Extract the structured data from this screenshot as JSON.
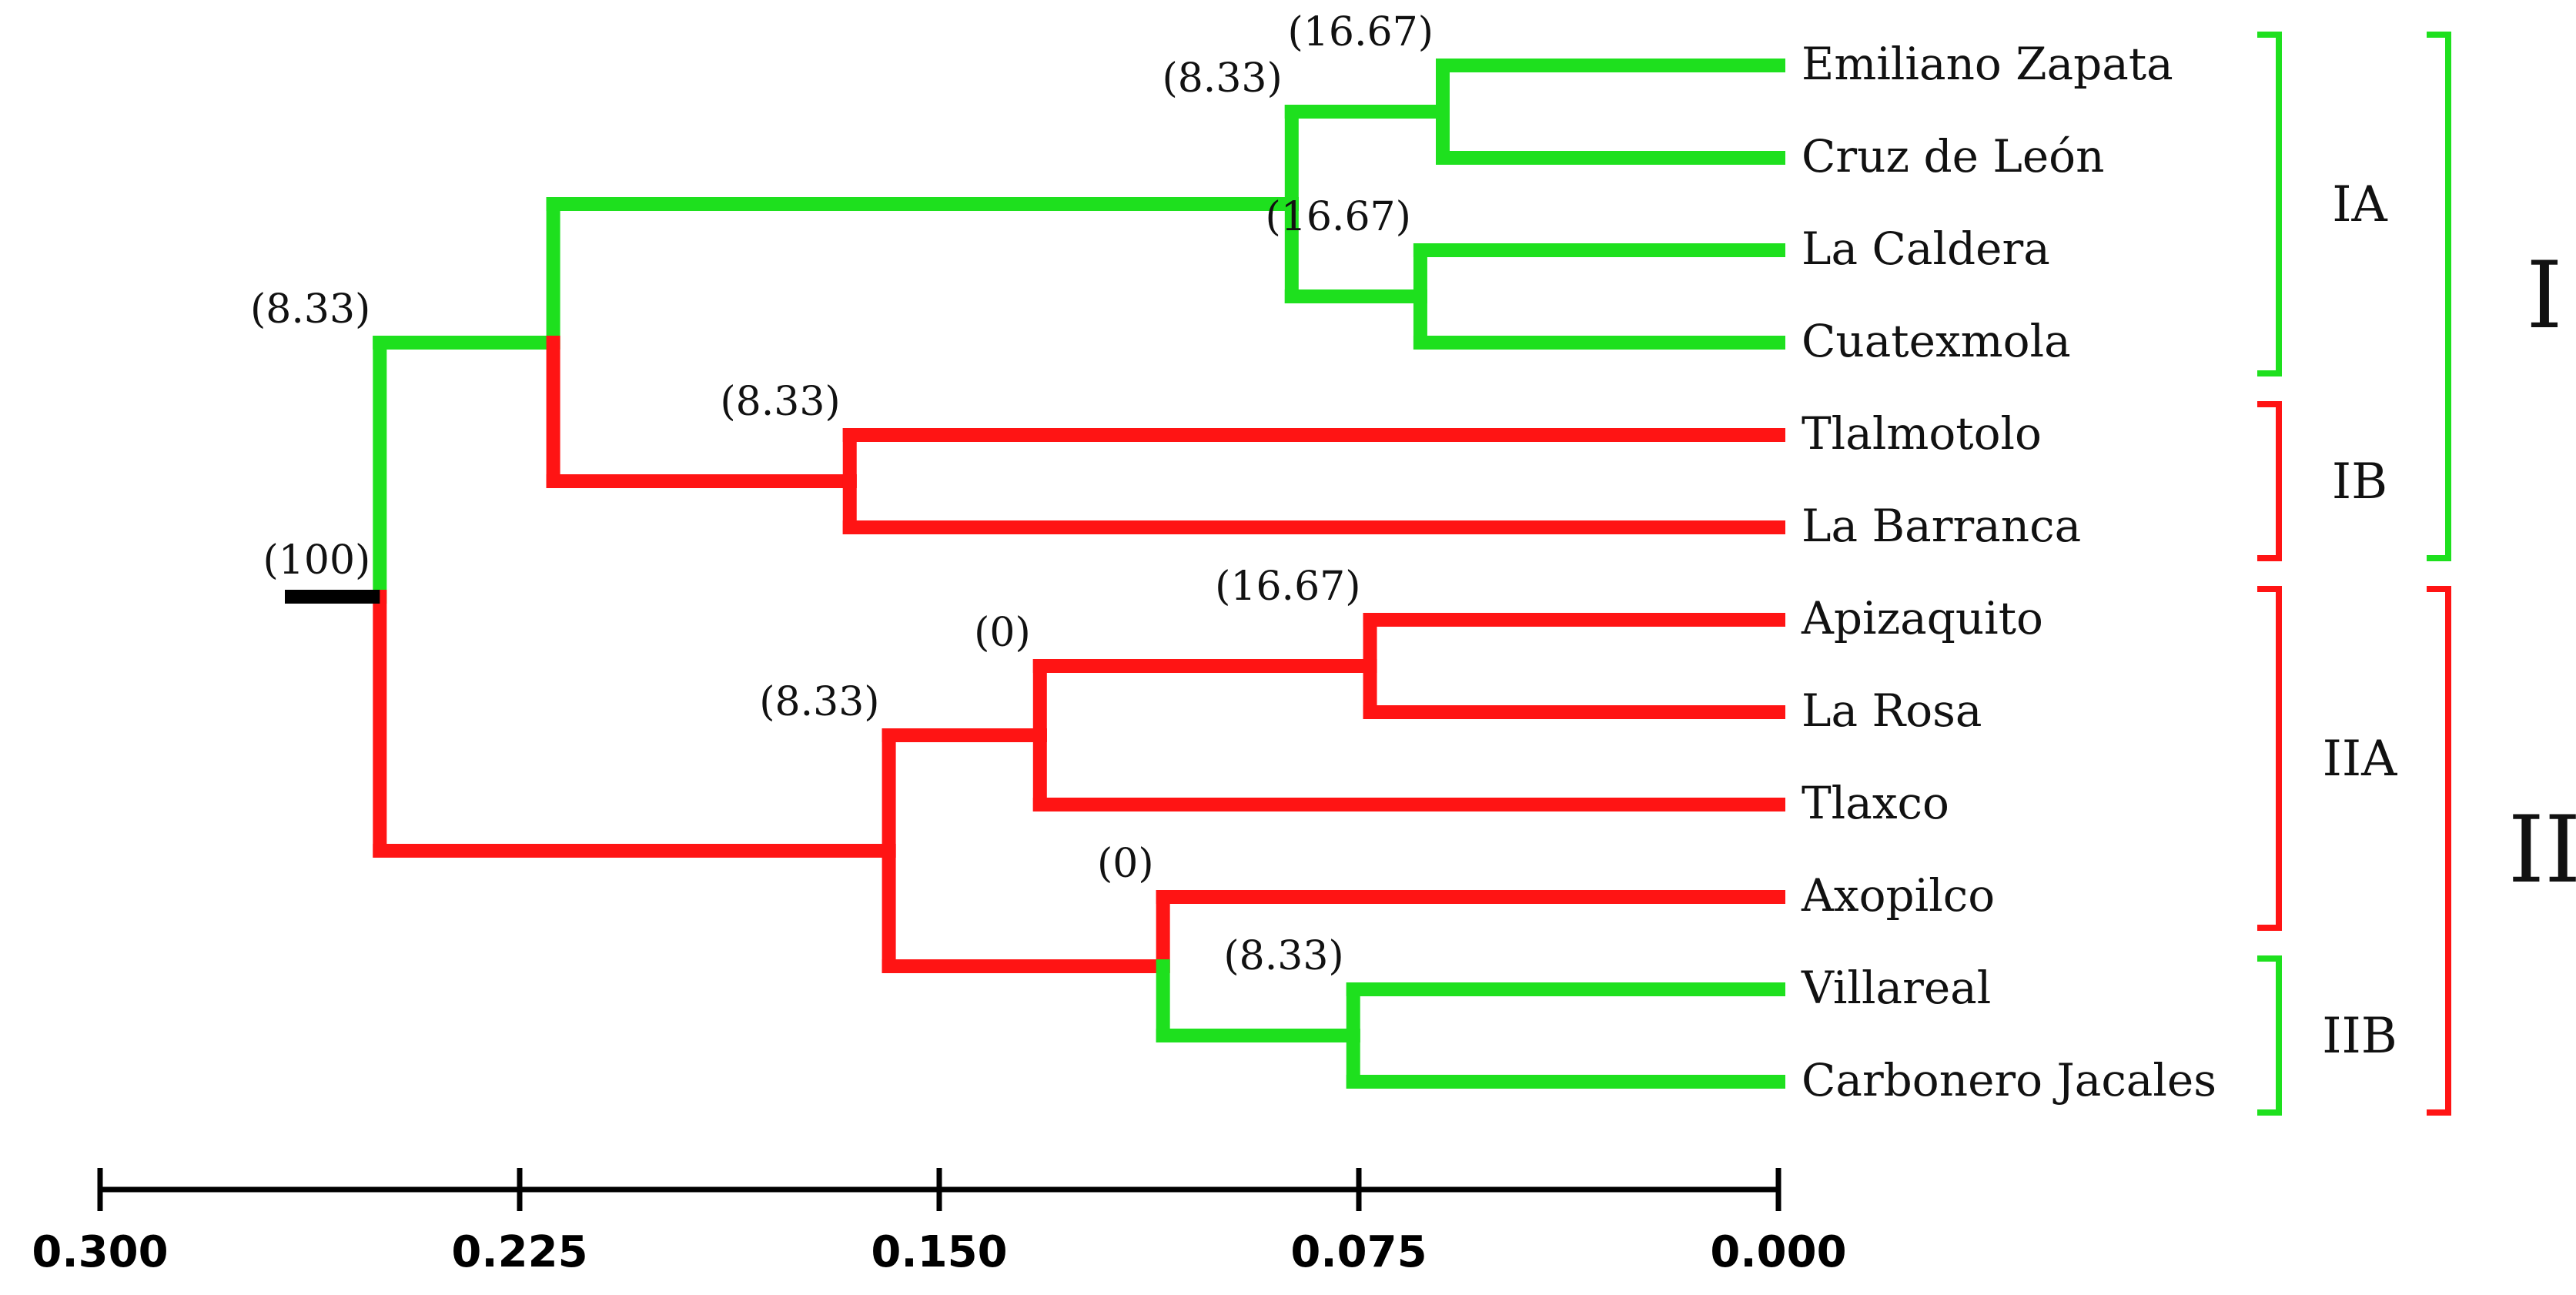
{
  "colors": {
    "green": "#1ee01e",
    "red": "#ff1414",
    "root": "#000000",
    "axis": "#000000"
  },
  "leaves": [
    "Emiliano Zapata",
    "Cruz de León",
    "La Caldera",
    "Cuatexmola",
    "Tlalmotolo",
    "La Barranca",
    "Apizaquito",
    "La Rosa",
    "Tlaxco",
    "Axopilco",
    "Villareal",
    "Carbonero Jacales"
  ],
  "bootstrap": {
    "root": "(100)",
    "n_I": "(8.33)",
    "n_IA": "(8.33)",
    "n_EZ_CL": "(16.67)",
    "n_LC_CU": "(16.67)",
    "n_IB": "(8.33)",
    "n_II": "(8.33)",
    "n_IIA": "(0)",
    "n_AP_LR": "(16.67)",
    "n_AX": "(0)",
    "n_IIB": "(8.33)"
  },
  "groups": {
    "IA": "IA",
    "IB": "IB",
    "IIA": "IIA",
    "IIB": "IIB",
    "I": "I",
    "II": "II"
  },
  "axis": {
    "min": 0.0,
    "max": 0.3,
    "ticks": [
      {
        "value": 0.3,
        "label": "0.300"
      },
      {
        "value": 0.225,
        "label": "0.225"
      },
      {
        "value": 0.15,
        "label": "0.150"
      },
      {
        "value": 0.075,
        "label": "0.075"
      },
      {
        "value": 0.0,
        "label": "0.000"
      }
    ]
  },
  "tree": {
    "id": "root",
    "height": 0.25,
    "color": "red",
    "label_key": "root",
    "children": [
      {
        "id": "n_I",
        "height": 0.25,
        "color": "green",
        "label_key": "n_I",
        "children": [
          {
            "id": "n_IA_IB",
            "height": 0.219,
            "color": "green",
            "children": [
              {
                "id": "n_IA",
                "height": 0.087,
                "color": "green",
                "label_key": "n_IA",
                "children": [
                  {
                    "id": "n_EZ_CL",
                    "height": 0.06,
                    "color": "green",
                    "label_key": "n_EZ_CL",
                    "children": [
                      {
                        "leaf": 0,
                        "color": "green"
                      },
                      {
                        "leaf": 1,
                        "color": "green"
                      }
                    ]
                  },
                  {
                    "id": "n_LC_CU",
                    "height": 0.064,
                    "color": "green",
                    "label_key": "n_LC_CU",
                    "children": [
                      {
                        "leaf": 2,
                        "color": "green"
                      },
                      {
                        "leaf": 3,
                        "color": "green"
                      }
                    ]
                  }
                ]
              },
              {
                "id": "n_IB",
                "height": 0.166,
                "color": "red",
                "label_key": "n_IB",
                "children": [
                  {
                    "leaf": 4,
                    "color": "red"
                  },
                  {
                    "leaf": 5,
                    "color": "red"
                  }
                ]
              }
            ]
          }
        ]
      },
      {
        "id": "n_II",
        "height": 0.159,
        "color": "red",
        "label_key": "n_II",
        "children": [
          {
            "id": "n_IIA",
            "height": 0.132,
            "color": "red",
            "label_key": "n_IIA",
            "children": [
              {
                "id": "n_AP_LR",
                "height": 0.073,
                "color": "red",
                "label_key": "n_AP_LR",
                "children": [
                  {
                    "leaf": 6,
                    "color": "red"
                  },
                  {
                    "leaf": 7,
                    "color": "red"
                  }
                ]
              },
              {
                "leaf": 8,
                "color": "red"
              }
            ]
          },
          {
            "id": "n_AX",
            "height": 0.11,
            "color": "red",
            "label_key": "n_AX",
            "children": [
              {
                "leaf": 9,
                "color": "red"
              },
              {
                "id": "n_IIB",
                "height": 0.076,
                "color": "green",
                "label_key": "n_IIB",
                "children": [
                  {
                    "leaf": 10,
                    "color": "green"
                  },
                  {
                    "leaf": 11,
                    "color": "green"
                  }
                ]
              }
            ]
          }
        ]
      }
    ]
  },
  "brackets": [
    {
      "id": "IA",
      "from_leaf": 0,
      "to_leaf": 3,
      "color": "green",
      "label_key": "IA",
      "level": "inner"
    },
    {
      "id": "IB",
      "from_leaf": 4,
      "to_leaf": 5,
      "color": "red",
      "label_key": "IB",
      "level": "inner"
    },
    {
      "id": "IIA",
      "from_leaf": 6,
      "to_leaf": 9,
      "color": "red",
      "label_key": "IIA",
      "level": "inner"
    },
    {
      "id": "IIB",
      "from_leaf": 10,
      "to_leaf": 11,
      "color": "green",
      "label_key": "IIB",
      "level": "inner"
    },
    {
      "id": "I",
      "from_leaf": 0,
      "to_leaf": 5,
      "color": "green",
      "label_key": "I",
      "level": "outer"
    },
    {
      "id": "II",
      "from_leaf": 6,
      "to_leaf": 11,
      "color": "red",
      "label_key": "II",
      "level": "outer"
    }
  ]
}
